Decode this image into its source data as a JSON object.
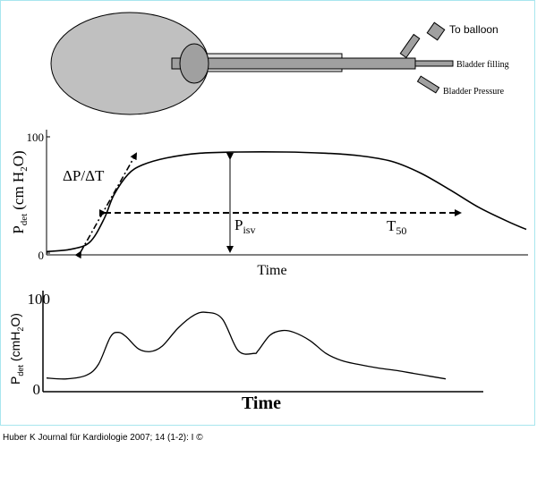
{
  "catheter": {
    "labels": {
      "to_balloon": "To balloon",
      "bladder_filling": "Bladder filling",
      "bladder_pressure": "Bladder Pressure"
    }
  },
  "chart_data": [
    {
      "type": "line",
      "title": "",
      "ylabel_main": "P",
      "ylabel_sub": "det",
      "ylabel_unit": "(cm H",
      "ylabel_unit_sub": "2",
      "ylabel_unit_end": "O)",
      "xlabel": "Time",
      "yticks": [
        "100",
        "0"
      ],
      "ylim": [
        0,
        100
      ],
      "annotations": {
        "slope": "ΔP/ΔT",
        "isv_main": "P",
        "isv_sub": "isv",
        "t50_main": "T",
        "t50_sub": "50"
      },
      "series": [
        {
          "x": [
            0,
            5,
            9,
            12,
            14,
            17,
            20,
            25,
            32,
            40,
            50,
            58,
            65,
            72,
            78,
            84,
            90,
            96,
            100
          ],
          "y": [
            2,
            4,
            10,
            30,
            50,
            68,
            76,
            82,
            86,
            87,
            87,
            86,
            84,
            79,
            69,
            55,
            40,
            28,
            21
          ]
        }
      ]
    },
    {
      "type": "line",
      "title": "",
      "ylabel_main": "P",
      "ylabel_sub": "det",
      "ylabel_unit": "(cmH",
      "ylabel_unit_sub": "2",
      "ylabel_unit_end": "O)",
      "xlabel": "Time",
      "yticks": [
        "100",
        "0"
      ],
      "ylim": [
        0,
        100
      ],
      "series": [
        {
          "x": [
            0,
            5,
            10,
            13,
            16,
            18,
            20,
            23,
            26,
            29,
            33,
            37,
            40,
            44,
            48,
            52,
            53,
            56,
            59,
            62,
            66,
            70,
            74,
            78,
            83,
            88,
            92,
            96,
            100
          ],
          "y": [
            15,
            14,
            18,
            30,
            60,
            65,
            60,
            47,
            44,
            50,
            70,
            84,
            87,
            80,
            45,
            42,
            45,
            62,
            67,
            65,
            56,
            42,
            34,
            30,
            26,
            23,
            20,
            17,
            14
          ]
        }
      ]
    }
  ],
  "citation": "Huber K Journal für Kardiologie 2007; 14 (1-2): I ©"
}
